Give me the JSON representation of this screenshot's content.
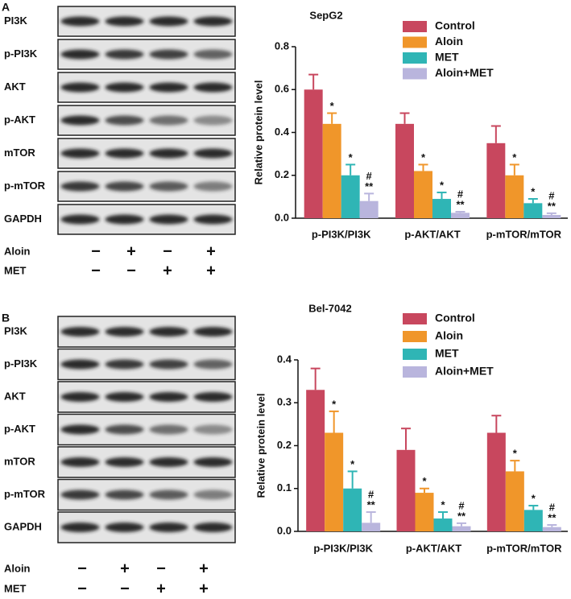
{
  "panels": [
    "A",
    "B"
  ],
  "blots": [
    {
      "rows": [
        "PI3K",
        "p-PI3K",
        "AKT",
        "p-AKT",
        "mTOR",
        "p-mTOR",
        "GAPDH"
      ],
      "treatments": [
        {
          "name": "Aloin",
          "signs": [
            "−",
            "+",
            "−",
            "+"
          ]
        },
        {
          "name": "MET",
          "signs": [
            "−",
            "−",
            "+",
            "+"
          ]
        }
      ]
    },
    {
      "rows": [
        "PI3K",
        "p-PI3K",
        "AKT",
        "p-AKT",
        "mTOR",
        "p-mTOR",
        "GAPDH"
      ],
      "treatments": [
        {
          "name": "Aloin",
          "signs": [
            "−",
            "+",
            "−",
            "+"
          ]
        },
        {
          "name": "MET",
          "signs": [
            "−",
            "−",
            "+",
            "+"
          ]
        }
      ]
    }
  ],
  "chart_data": [
    {
      "type": "bar",
      "title": "SepG2",
      "y_label": "Relative protein level",
      "categories": [
        "p-PI3K/PI3K",
        "p-AKT/AKT",
        "p-mTOR/mTOR"
      ],
      "series": [
        {
          "name": "Control",
          "color": "#c8475e",
          "values": [
            0.6,
            0.44,
            0.35
          ],
          "errors": [
            0.07,
            0.05,
            0.08
          ]
        },
        {
          "name": "Aloin",
          "color": "#f0962a",
          "values": [
            0.44,
            0.22,
            0.2
          ],
          "errors": [
            0.05,
            0.03,
            0.05
          ],
          "annotations": [
            [
              "*"
            ],
            [
              "*"
            ],
            [
              "*"
            ]
          ]
        },
        {
          "name": "MET",
          "color": "#2fb5b5",
          "values": [
            0.2,
            0.09,
            0.07
          ],
          "errors": [
            0.05,
            0.03,
            0.02
          ],
          "annotations": [
            [
              "*"
            ],
            [
              "*"
            ],
            [
              "*"
            ]
          ]
        },
        {
          "name": "Aloin+MET",
          "color": "#b9b5dd",
          "values": [
            0.08,
            0.025,
            0.015
          ],
          "errors": [
            0.035,
            0.005,
            0.008
          ],
          "annotations": [
            [
              "#",
              "**"
            ],
            [
              "#",
              "**"
            ],
            [
              "#",
              "**"
            ]
          ]
        }
      ],
      "ylim": [
        0,
        0.8
      ],
      "yticks": [
        {
          "value": 0,
          "label": "0.0"
        },
        0.2,
        0.4,
        0.6,
        0.8
      ],
      "legend": "top-right"
    },
    {
      "type": "bar",
      "title": "Bel-7042",
      "y_label": "Relative protein level",
      "categories": [
        "p-PI3K/PI3K",
        "p-AKT/AKT",
        "p-mTOR/mTOR"
      ],
      "series": [
        {
          "name": "Control",
          "color": "#c8475e",
          "values": [
            0.33,
            0.19,
            0.23
          ],
          "errors": [
            0.05,
            0.05,
            0.04
          ]
        },
        {
          "name": "Aloin",
          "color": "#f0962a",
          "values": [
            0.23,
            0.09,
            0.14
          ],
          "errors": [
            0.05,
            0.01,
            0.025
          ],
          "annotations": [
            [
              "*"
            ],
            [
              "*"
            ],
            [
              "*"
            ]
          ]
        },
        {
          "name": "MET",
          "color": "#2fb5b5",
          "values": [
            0.1,
            0.03,
            0.05
          ],
          "errors": [
            0.04,
            0.015,
            0.01
          ],
          "annotations": [
            [
              "*"
            ],
            [
              "*"
            ],
            [
              "*"
            ]
          ]
        },
        {
          "name": "Aloin+MET",
          "color": "#b9b5dd",
          "values": [
            0.02,
            0.012,
            0.01
          ],
          "errors": [
            0.025,
            0.007,
            0.005
          ],
          "annotations": [
            [
              "#",
              "**"
            ],
            [
              "#",
              "**"
            ],
            [
              "#",
              "**"
            ]
          ]
        }
      ],
      "ylim": [
        0,
        0.4
      ],
      "yticks": [
        {
          "value": 0,
          "label": "0.0"
        },
        0.1,
        0.2,
        0.3,
        0.4
      ],
      "legend": "top-right"
    }
  ]
}
